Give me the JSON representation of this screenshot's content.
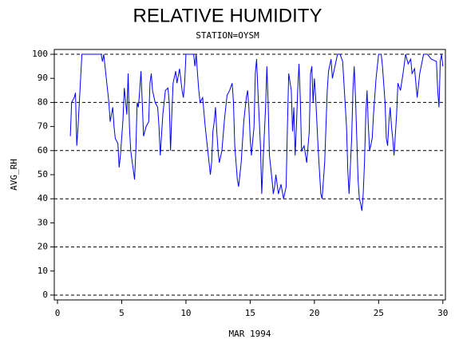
{
  "chart_data": {
    "type": "line",
    "title": "RELATIVE HUMIDITY",
    "subtitle": "STATION=OYSM",
    "x_label": "MAR 1994",
    "y_label": "AVG_RH",
    "color": "#0000ff",
    "xlim": [
      -0.25,
      30.2
    ],
    "ylim": [
      -2,
      102
    ],
    "xticks": [
      0,
      5,
      10,
      15,
      20,
      25,
      30
    ],
    "yticks": [
      0,
      10,
      20,
      30,
      40,
      50,
      60,
      70,
      80,
      90,
      100
    ],
    "grid_lines": [
      0,
      20,
      40,
      60,
      80,
      100
    ],
    "x": [
      1.0,
      1.1,
      1.3,
      1.4,
      1.5,
      1.6,
      1.7,
      1.8,
      1.9,
      2.5,
      3.4,
      3.5,
      3.6,
      3.7,
      3.9,
      4.0,
      4.1,
      4.3,
      4.4,
      4.5,
      4.7,
      4.8,
      4.9,
      5.1,
      5.2,
      5.4,
      5.5,
      5.6,
      5.7,
      5.9,
      6.0,
      6.1,
      6.2,
      6.3,
      6.4,
      6.5,
      6.6,
      6.7,
      6.9,
      7.1,
      7.2,
      7.3,
      7.4,
      7.6,
      7.8,
      7.9,
      8.0,
      8.2,
      8.4,
      8.6,
      8.7,
      8.8,
      8.9,
      9.0,
      9.2,
      9.3,
      9.5,
      9.7,
      9.8,
      9.9,
      10.0,
      10.6,
      10.7,
      10.8,
      10.9,
      11.0,
      11.1,
      11.3,
      11.5,
      11.7,
      11.9,
      12.0,
      12.1,
      12.2,
      12.3,
      12.4,
      12.5,
      12.6,
      12.8,
      13.0,
      13.2,
      13.4,
      13.6,
      13.7,
      13.8,
      14.0,
      14.1,
      14.3,
      14.5,
      14.7,
      14.8,
      14.9,
      15.0,
      15.1,
      15.3,
      15.4,
      15.5,
      15.6,
      15.8,
      15.9,
      16.0,
      16.2,
      16.3,
      16.4,
      16.5,
      16.7,
      16.8,
      16.9,
      17.0,
      17.2,
      17.4,
      17.6,
      17.8,
      17.9,
      18.0,
      18.2,
      18.3,
      18.4,
      18.5,
      18.6,
      18.7,
      18.8,
      18.9,
      19.0,
      19.2,
      19.4,
      19.6,
      19.7,
      19.8,
      19.9,
      20.0,
      20.1,
      20.3,
      20.5,
      20.6,
      20.8,
      20.9,
      21.0,
      21.1,
      21.3,
      21.4,
      21.6,
      21.8,
      22.0,
      22.2,
      22.3,
      22.5,
      22.6,
      22.7,
      22.9,
      23.0,
      23.1,
      23.2,
      23.3,
      23.4,
      23.5,
      23.6,
      23.7,
      23.8,
      23.9,
      24.0,
      24.1,
      24.2,
      24.3,
      24.5,
      24.6,
      24.8,
      25.0,
      25.2,
      25.3,
      25.5,
      25.6,
      25.7,
      25.8,
      25.9,
      26.0,
      26.1,
      26.2,
      26.4,
      26.5,
      26.7,
      26.9,
      27.1,
      27.3,
      27.5,
      27.6,
      27.8,
      27.9,
      28.0,
      28.2,
      28.5,
      28.8,
      29.1,
      29.5,
      29.6,
      29.7,
      29.8,
      29.9,
      30.0
    ],
    "values": [
      66,
      80,
      82,
      84,
      62,
      70,
      80,
      90,
      100,
      100,
      100,
      97,
      100,
      95,
      85,
      80,
      72,
      78,
      70,
      65,
      63,
      53,
      58,
      73,
      86,
      75,
      92,
      70,
      60,
      52,
      48,
      60,
      80,
      78,
      85,
      93,
      80,
      66,
      70,
      72,
      88,
      92,
      85,
      80,
      78,
      70,
      58,
      75,
      85,
      86,
      80,
      60,
      75,
      88,
      93,
      88,
      94,
      85,
      82,
      88,
      100,
      100,
      95,
      100,
      92,
      85,
      80,
      82,
      70,
      60,
      50,
      55,
      68,
      72,
      78,
      68,
      60,
      55,
      60,
      73,
      83,
      85,
      88,
      80,
      62,
      48,
      45,
      55,
      72,
      82,
      85,
      78,
      65,
      58,
      70,
      92,
      98,
      85,
      62,
      42,
      55,
      78,
      95,
      80,
      58,
      48,
      42,
      45,
      50,
      42,
      46,
      40,
      45,
      70,
      92,
      85,
      68,
      78,
      58,
      70,
      85,
      96,
      82,
      60,
      62,
      55,
      68,
      92,
      95,
      80,
      90,
      82,
      60,
      42,
      40,
      55,
      70,
      85,
      93,
      98,
      90,
      95,
      100,
      100,
      97,
      88,
      70,
      52,
      42,
      65,
      85,
      95,
      82,
      65,
      48,
      40,
      38,
      35,
      42,
      55,
      75,
      85,
      70,
      60,
      65,
      75,
      90,
      100,
      100,
      95,
      80,
      65,
      62,
      72,
      78,
      70,
      65,
      58,
      75,
      88,
      85,
      92,
      100,
      96,
      98,
      92,
      94,
      88,
      82,
      92,
      100,
      100,
      98,
      97,
      85,
      78,
      97,
      100,
      95
    ]
  }
}
